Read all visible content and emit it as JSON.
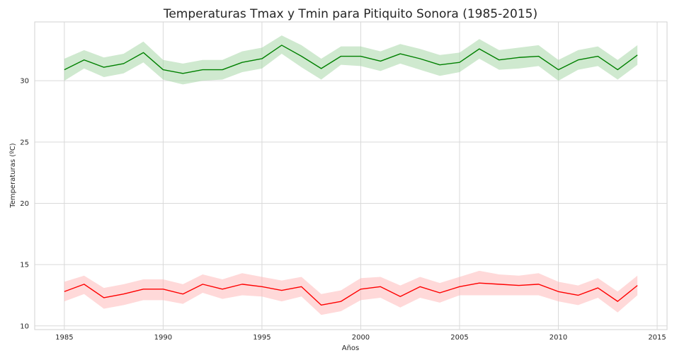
{
  "chart_data": {
    "type": "line",
    "title": "Temperaturas Tmax y Tmin para Pitiquito Sonora (1985-2015)",
    "xlabel": "Años",
    "ylabel": "Temperaturas (ºC)",
    "xlim": [
      1983.5,
      2015.5
    ],
    "ylim": [
      9.7,
      34.8
    ],
    "xticks": [
      1985,
      1990,
      1995,
      2000,
      2005,
      2010,
      2015
    ],
    "yticks": [
      10,
      15,
      20,
      25,
      30
    ],
    "grid": true,
    "x": [
      1985,
      1986,
      1987,
      1988,
      1989,
      1990,
      1991,
      1992,
      1993,
      1994,
      1995,
      1996,
      1997,
      1998,
      1999,
      2000,
      2001,
      2002,
      2003,
      2004,
      2005,
      2006,
      2007,
      2008,
      2009,
      2010,
      2011,
      2012,
      2013,
      2014
    ],
    "series": [
      {
        "name": "",
        "color": "#008000",
        "band_color": "#9fd39f",
        "values": [
          30.9,
          31.7,
          31.1,
          31.4,
          32.3,
          30.9,
          30.6,
          30.9,
          30.9,
          31.5,
          31.8,
          32.9,
          32.0,
          31.0,
          32.0,
          32.0,
          31.6,
          32.2,
          31.8,
          31.3,
          31.5,
          32.6,
          31.7,
          31.9,
          32.0,
          30.9,
          31.7,
          32.0,
          30.9,
          32.1
        ],
        "lower": [
          30.0,
          31.0,
          30.3,
          30.6,
          31.5,
          30.1,
          29.7,
          30.0,
          30.1,
          30.7,
          31.0,
          32.2,
          31.1,
          30.1,
          31.3,
          31.2,
          30.8,
          31.4,
          30.9,
          30.4,
          30.7,
          31.8,
          30.9,
          31.0,
          31.2,
          30.0,
          30.9,
          31.2,
          30.1,
          31.3
        ],
        "upper": [
          31.8,
          32.5,
          31.9,
          32.2,
          33.2,
          31.7,
          31.4,
          31.7,
          31.7,
          32.4,
          32.7,
          33.7,
          32.9,
          31.8,
          32.8,
          32.8,
          32.4,
          33.0,
          32.6,
          32.1,
          32.3,
          33.4,
          32.5,
          32.7,
          32.9,
          31.7,
          32.5,
          32.8,
          31.7,
          32.9
        ]
      },
      {
        "name": "",
        "color": "#ff0000",
        "band_color": "#ffb3b3",
        "values": [
          12.8,
          13.4,
          12.3,
          12.6,
          13.0,
          13.0,
          12.6,
          13.4,
          13.0,
          13.4,
          13.2,
          12.9,
          13.2,
          11.7,
          12.0,
          13.0,
          13.2,
          12.4,
          13.2,
          12.7,
          13.2,
          13.5,
          13.4,
          13.3,
          13.4,
          12.8,
          12.5,
          13.1,
          12.0,
          13.3
        ],
        "lower": [
          12.0,
          12.6,
          11.4,
          11.7,
          12.1,
          12.1,
          11.8,
          12.7,
          12.2,
          12.5,
          12.4,
          12.0,
          12.4,
          10.9,
          11.2,
          12.1,
          12.3,
          11.5,
          12.3,
          11.9,
          12.5,
          12.5,
          12.5,
          12.5,
          12.5,
          12.0,
          11.7,
          12.3,
          11.1,
          12.5
        ],
        "upper": [
          13.6,
          14.1,
          13.1,
          13.4,
          13.8,
          13.8,
          13.4,
          14.2,
          13.8,
          14.3,
          14.0,
          13.7,
          14.0,
          12.6,
          12.9,
          13.9,
          14.0,
          13.3,
          14.0,
          13.5,
          14.0,
          14.5,
          14.2,
          14.1,
          14.3,
          13.6,
          13.3,
          13.9,
          12.8,
          14.1
        ]
      }
    ]
  }
}
